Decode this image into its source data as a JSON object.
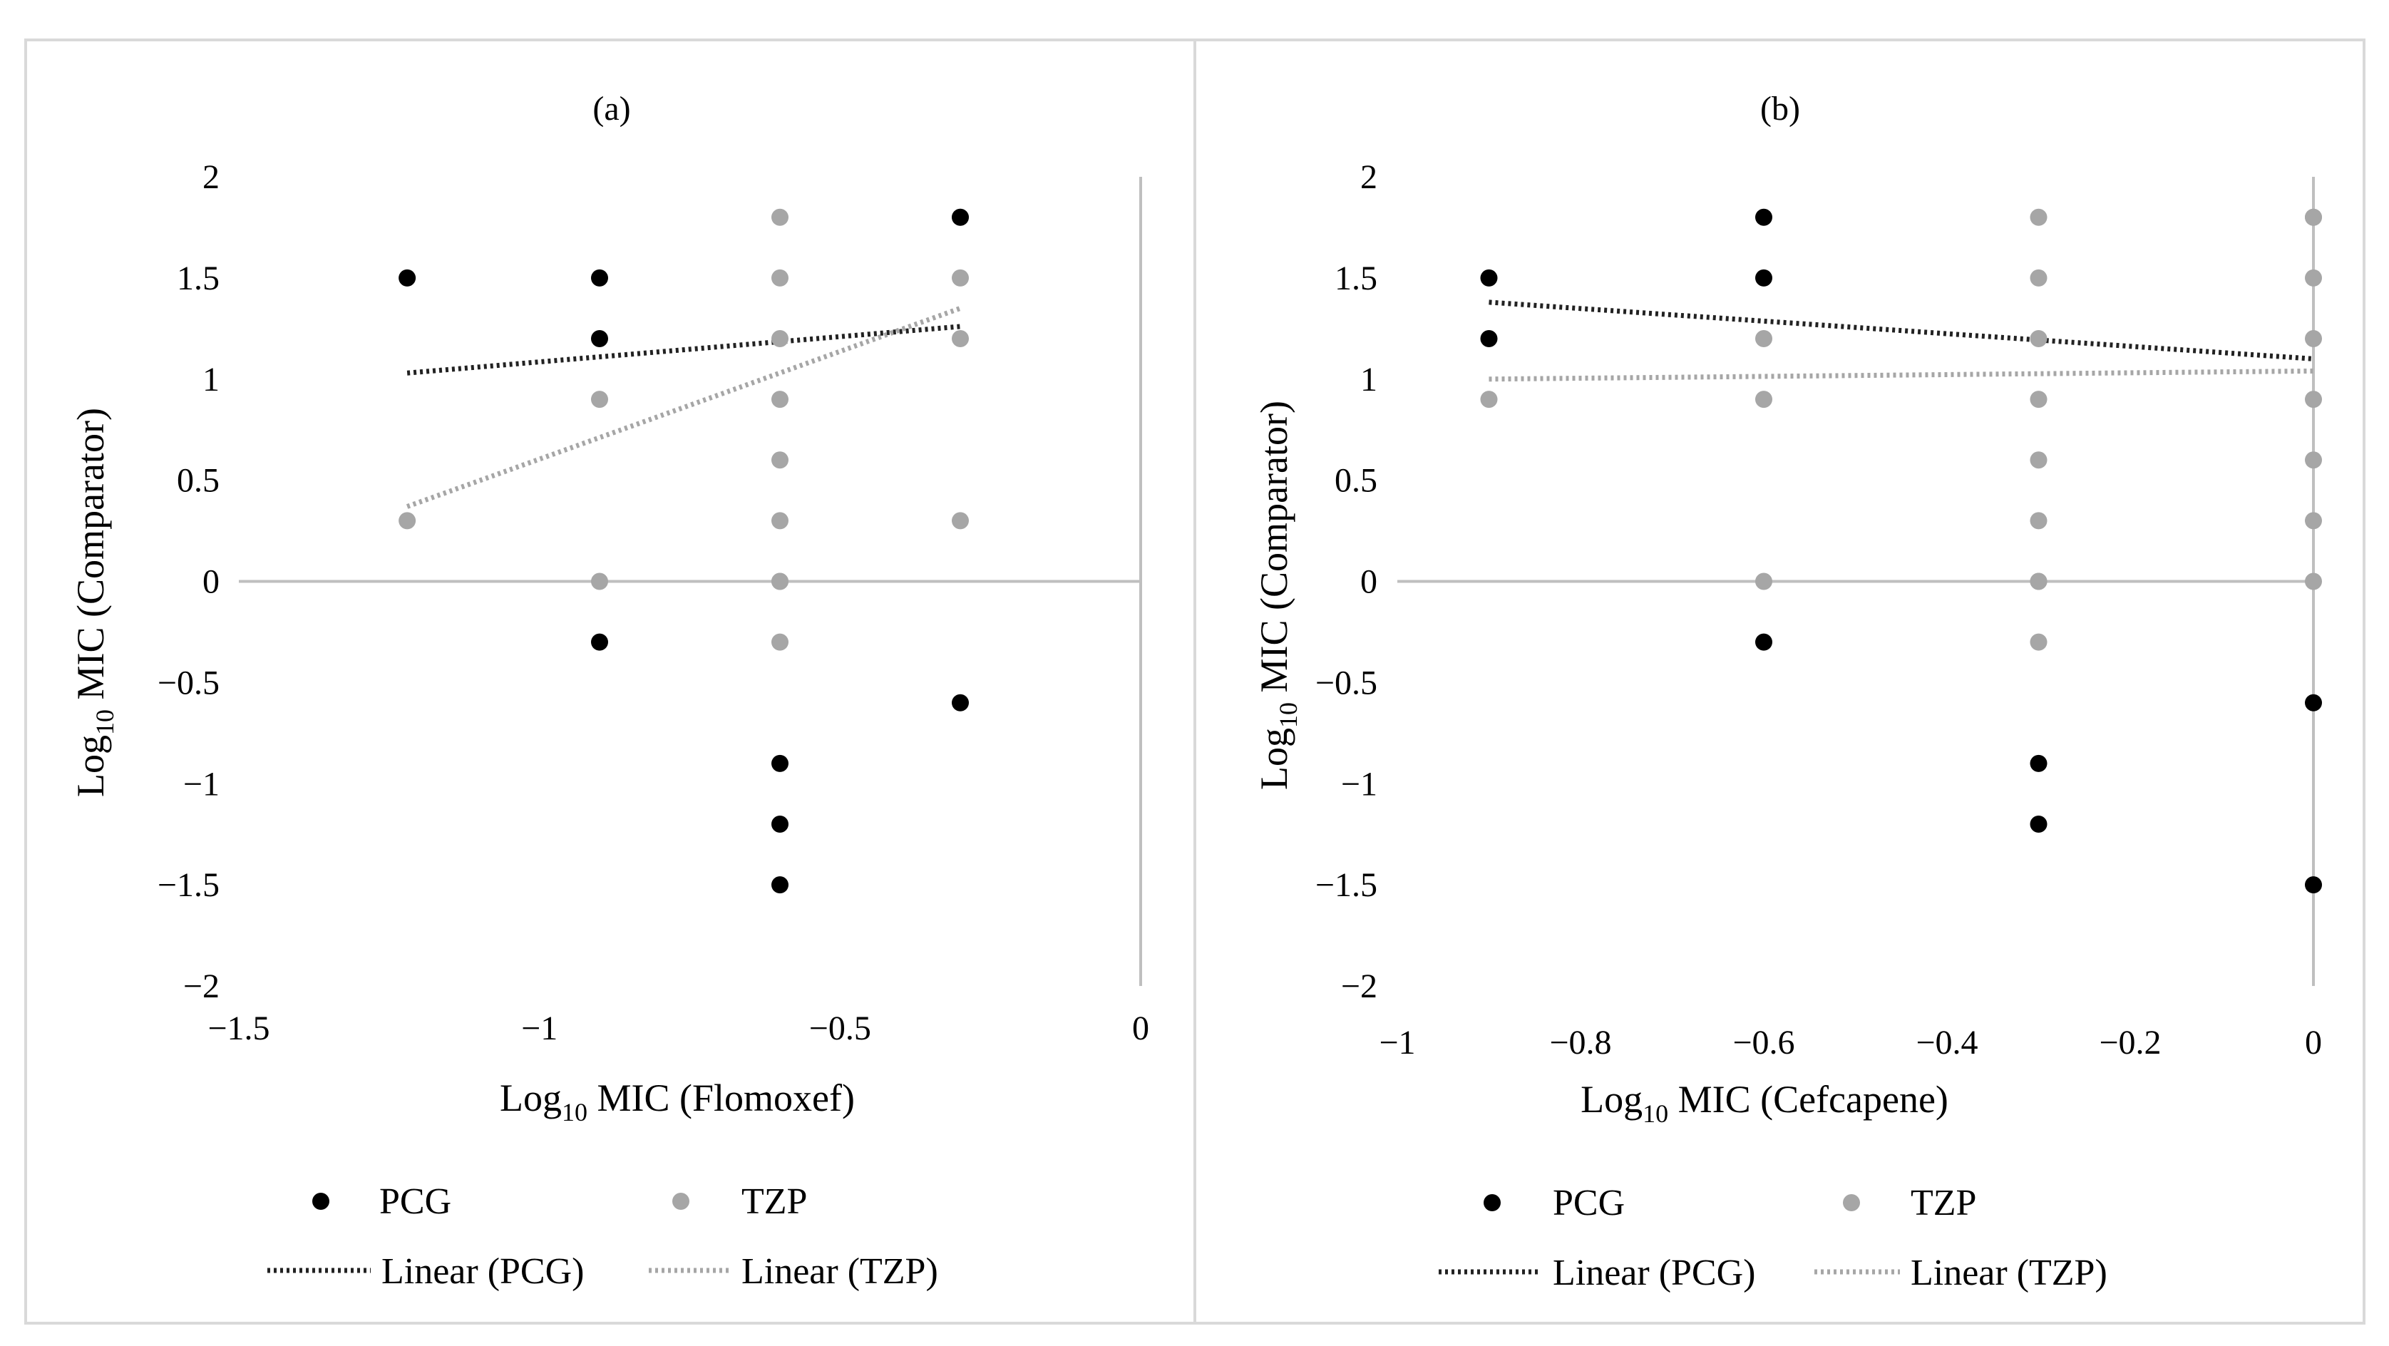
{
  "colors": {
    "pcg": "#000000",
    "tzp": "#a6a6a6",
    "axis": "#bfbfbf",
    "frame": "#d9d9d9"
  },
  "y_axis_title": {
    "main": "Log",
    "sub": "10",
    "rest": " MIC (Comparator)"
  },
  "legend": {
    "pcg": "PCG",
    "tzp": "TZP",
    "linear_pcg": "Linear (PCG)",
    "linear_tzp": "Linear (TZP)"
  },
  "chart_data": [
    {
      "type": "scatter",
      "title": "(a)",
      "xlabel": {
        "main": "Log",
        "sub": "10",
        "rest": " MIC (Flomoxef)"
      },
      "ylabel": "Log10 MIC (Comparator)",
      "xlim": [
        -1.5,
        0
      ],
      "ylim": [
        -2,
        2
      ],
      "xticks": [
        -1.5,
        -1,
        -0.5,
        0
      ],
      "xtick_labels": [
        "−1.5",
        "−1",
        "−0.5",
        "0"
      ],
      "yticks": [
        2,
        1.5,
        1,
        0.5,
        0,
        -0.5,
        -1,
        -1.5,
        -2
      ],
      "ytick_labels": [
        "2",
        "1.5",
        "1",
        "0.5",
        "0",
        "−0.5",
        "−1",
        "−1.5",
        "−2"
      ],
      "series": [
        {
          "name": "PCG",
          "x": [
            -1.22,
            -0.9,
            -0.9,
            -0.9,
            -0.6,
            -0.6,
            -0.6,
            -0.3,
            -0.3
          ],
          "y": [
            1.5,
            1.5,
            1.2,
            -0.3,
            -0.9,
            -1.2,
            -1.5,
            -0.6,
            1.8
          ]
        },
        {
          "name": "TZP",
          "x": [
            -1.22,
            -0.9,
            -0.9,
            -0.6,
            -0.6,
            -0.6,
            -0.6,
            -0.6,
            -0.6,
            -0.6,
            -0.6,
            -0.6,
            -0.3,
            -0.3,
            -0.3,
            -0.3
          ],
          "y": [
            0.3,
            0.9,
            0,
            1.8,
            1.5,
            1.2,
            0.9,
            0.6,
            0.3,
            0,
            -0.3,
            0,
            1.8,
            1.5,
            1.2,
            0.3
          ]
        }
      ],
      "trendlines": [
        {
          "name": "Linear (PCG)",
          "x": [
            -1.22,
            -0.3
          ],
          "y": [
            1.03,
            1.26
          ]
        },
        {
          "name": "Linear (TZP)",
          "x": [
            -1.22,
            -0.3
          ],
          "y": [
            0.37,
            1.35
          ]
        }
      ]
    },
    {
      "type": "scatter",
      "title": "(b)",
      "xlabel": {
        "main": "Log",
        "sub": "10",
        "rest": " MIC (Cefcapene)"
      },
      "ylabel": "Log10 MIC (Comparator)",
      "xlim": [
        -1,
        0
      ],
      "ylim": [
        -2,
        2
      ],
      "xticks": [
        -1,
        -0.8,
        -0.6,
        -0.4,
        -0.2,
        0
      ],
      "xtick_labels": [
        "−1",
        "−0.8",
        "−0.6",
        "−0.4",
        "−0.2",
        "0"
      ],
      "yticks": [
        2,
        1.5,
        1,
        0.5,
        0,
        -0.5,
        -1,
        -1.5,
        -2
      ],
      "ytick_labels": [
        "2",
        "1.5",
        "1",
        "0.5",
        "0",
        "−0.5",
        "−1",
        "−1.5",
        "−2"
      ],
      "series": [
        {
          "name": "PCG",
          "x": [
            -0.9,
            -0.9,
            -0.6,
            -0.6,
            -0.6,
            -0.3,
            -0.3,
            0,
            0
          ],
          "y": [
            1.5,
            1.2,
            1.8,
            1.5,
            -0.3,
            -0.9,
            -1.2,
            -0.6,
            -1.5
          ]
        },
        {
          "name": "TZP",
          "x": [
            -0.9,
            -0.6,
            -0.6,
            -0.6,
            -0.3,
            -0.3,
            -0.3,
            -0.3,
            -0.3,
            -0.3,
            -0.3,
            -0.3,
            -0.3,
            0,
            0,
            0,
            0,
            0,
            0,
            0,
            0
          ],
          "y": [
            0.9,
            1.2,
            0.9,
            0,
            1.8,
            1.5,
            1.2,
            0.9,
            0.6,
            0.3,
            0,
            -0.3,
            0,
            1.8,
            1.5,
            1.2,
            0.9,
            0.6,
            0.3,
            0,
            1.8
          ]
        }
      ],
      "trendlines": [
        {
          "name": "Linear (PCG)",
          "x": [
            -0.9,
            0
          ],
          "y": [
            1.38,
            1.1
          ]
        },
        {
          "name": "Linear (TZP)",
          "x": [
            -0.9,
            0
          ],
          "y": [
            1.0,
            1.04
          ]
        }
      ]
    }
  ]
}
